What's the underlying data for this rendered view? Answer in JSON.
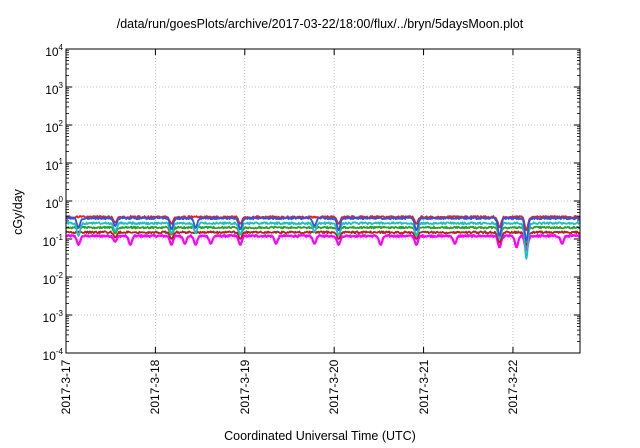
{
  "chart_data": {
    "type": "line",
    "title": "/data/run/goesPlots/archive/2017-03-22/18:00/flux/../bryn/5daysMoon.plot",
    "xlabel": "Coordinated Universal Time (UTC)",
    "ylabel": "cGy/day",
    "yscale": "log",
    "ylim": [
      0.0001,
      10000
    ],
    "ytick_labels": [
      {
        "base": "10",
        "exp": "-4"
      },
      {
        "base": "10",
        "exp": "-3"
      },
      {
        "base": "10",
        "exp": "-2"
      },
      {
        "base": "10",
        "exp": "-1"
      },
      {
        "base": "10",
        "exp": "0"
      },
      {
        "base": "10",
        "exp": "1"
      },
      {
        "base": "10",
        "exp": "2"
      },
      {
        "base": "10",
        "exp": "3"
      },
      {
        "base": "10",
        "exp": "4"
      }
    ],
    "xlim": [
      "2017-03-17",
      "2017-03-22T18:00"
    ],
    "x_tick_labels": [
      "2017-3-17",
      "2017-3-18",
      "2017-3-19",
      "2017-3-20",
      "2017-3-21",
      "2017-3-22"
    ],
    "grid": true,
    "series": [
      {
        "color": "#ff00ff",
        "baseline": 0.12,
        "dips": [
          [
            0.14,
            0.07
          ],
          [
            0.55,
            0.085
          ],
          [
            0.72,
            0.07
          ],
          [
            1.18,
            0.07
          ],
          [
            1.33,
            0.075
          ],
          [
            1.45,
            0.07
          ],
          [
            1.62,
            0.075
          ],
          [
            1.95,
            0.07
          ],
          [
            2.35,
            0.075
          ],
          [
            2.78,
            0.075
          ],
          [
            3.05,
            0.07
          ],
          [
            3.52,
            0.07
          ],
          [
            3.92,
            0.07
          ],
          [
            4.35,
            0.075
          ],
          [
            4.85,
            0.06
          ],
          [
            5.04,
            0.06
          ],
          [
            5.15,
            0.05
          ],
          [
            5.55,
            0.075
          ]
        ]
      },
      {
        "color": "#b22222",
        "baseline": 0.15,
        "dips": [
          [
            0.55,
            0.11
          ],
          [
            1.18,
            0.1
          ],
          [
            1.95,
            0.1
          ],
          [
            3.05,
            0.1
          ],
          [
            3.92,
            0.1
          ],
          [
            4.85,
            0.08
          ],
          [
            5.15,
            0.07
          ]
        ]
      },
      {
        "color": "#2ca02c",
        "baseline": 0.2,
        "dips": [
          [
            0.55,
            0.14
          ],
          [
            1.18,
            0.13
          ],
          [
            1.95,
            0.13
          ],
          [
            3.05,
            0.13
          ],
          [
            3.92,
            0.13
          ],
          [
            4.85,
            0.11
          ],
          [
            5.15,
            0.09
          ]
        ]
      },
      {
        "color": "#1fbfbf",
        "baseline": 0.26,
        "dips": [
          [
            0.14,
            0.12
          ],
          [
            0.55,
            0.16
          ],
          [
            1.18,
            0.14
          ],
          [
            1.45,
            0.14
          ],
          [
            1.95,
            0.13
          ],
          [
            2.78,
            0.15
          ],
          [
            3.05,
            0.12
          ],
          [
            3.92,
            0.12
          ],
          [
            4.85,
            0.1
          ],
          [
            5.15,
            0.03
          ]
        ]
      },
      {
        "color": "#e32222",
        "baseline": 0.38,
        "dips": [
          [
            0.55,
            0.27
          ],
          [
            1.18,
            0.25
          ],
          [
            1.95,
            0.25
          ],
          [
            3.05,
            0.25
          ],
          [
            3.92,
            0.25
          ],
          [
            4.85,
            0.2
          ],
          [
            5.15,
            0.17
          ]
        ]
      },
      {
        "color": "#2f54e0",
        "baseline": 0.35,
        "dips": [
          [
            0.14,
            0.2
          ],
          [
            0.55,
            0.22
          ],
          [
            1.18,
            0.18
          ],
          [
            1.45,
            0.2
          ],
          [
            1.95,
            0.18
          ],
          [
            2.78,
            0.22
          ],
          [
            3.05,
            0.17
          ],
          [
            3.92,
            0.17
          ],
          [
            4.85,
            0.12
          ],
          [
            5.15,
            0.09
          ]
        ]
      }
    ]
  }
}
